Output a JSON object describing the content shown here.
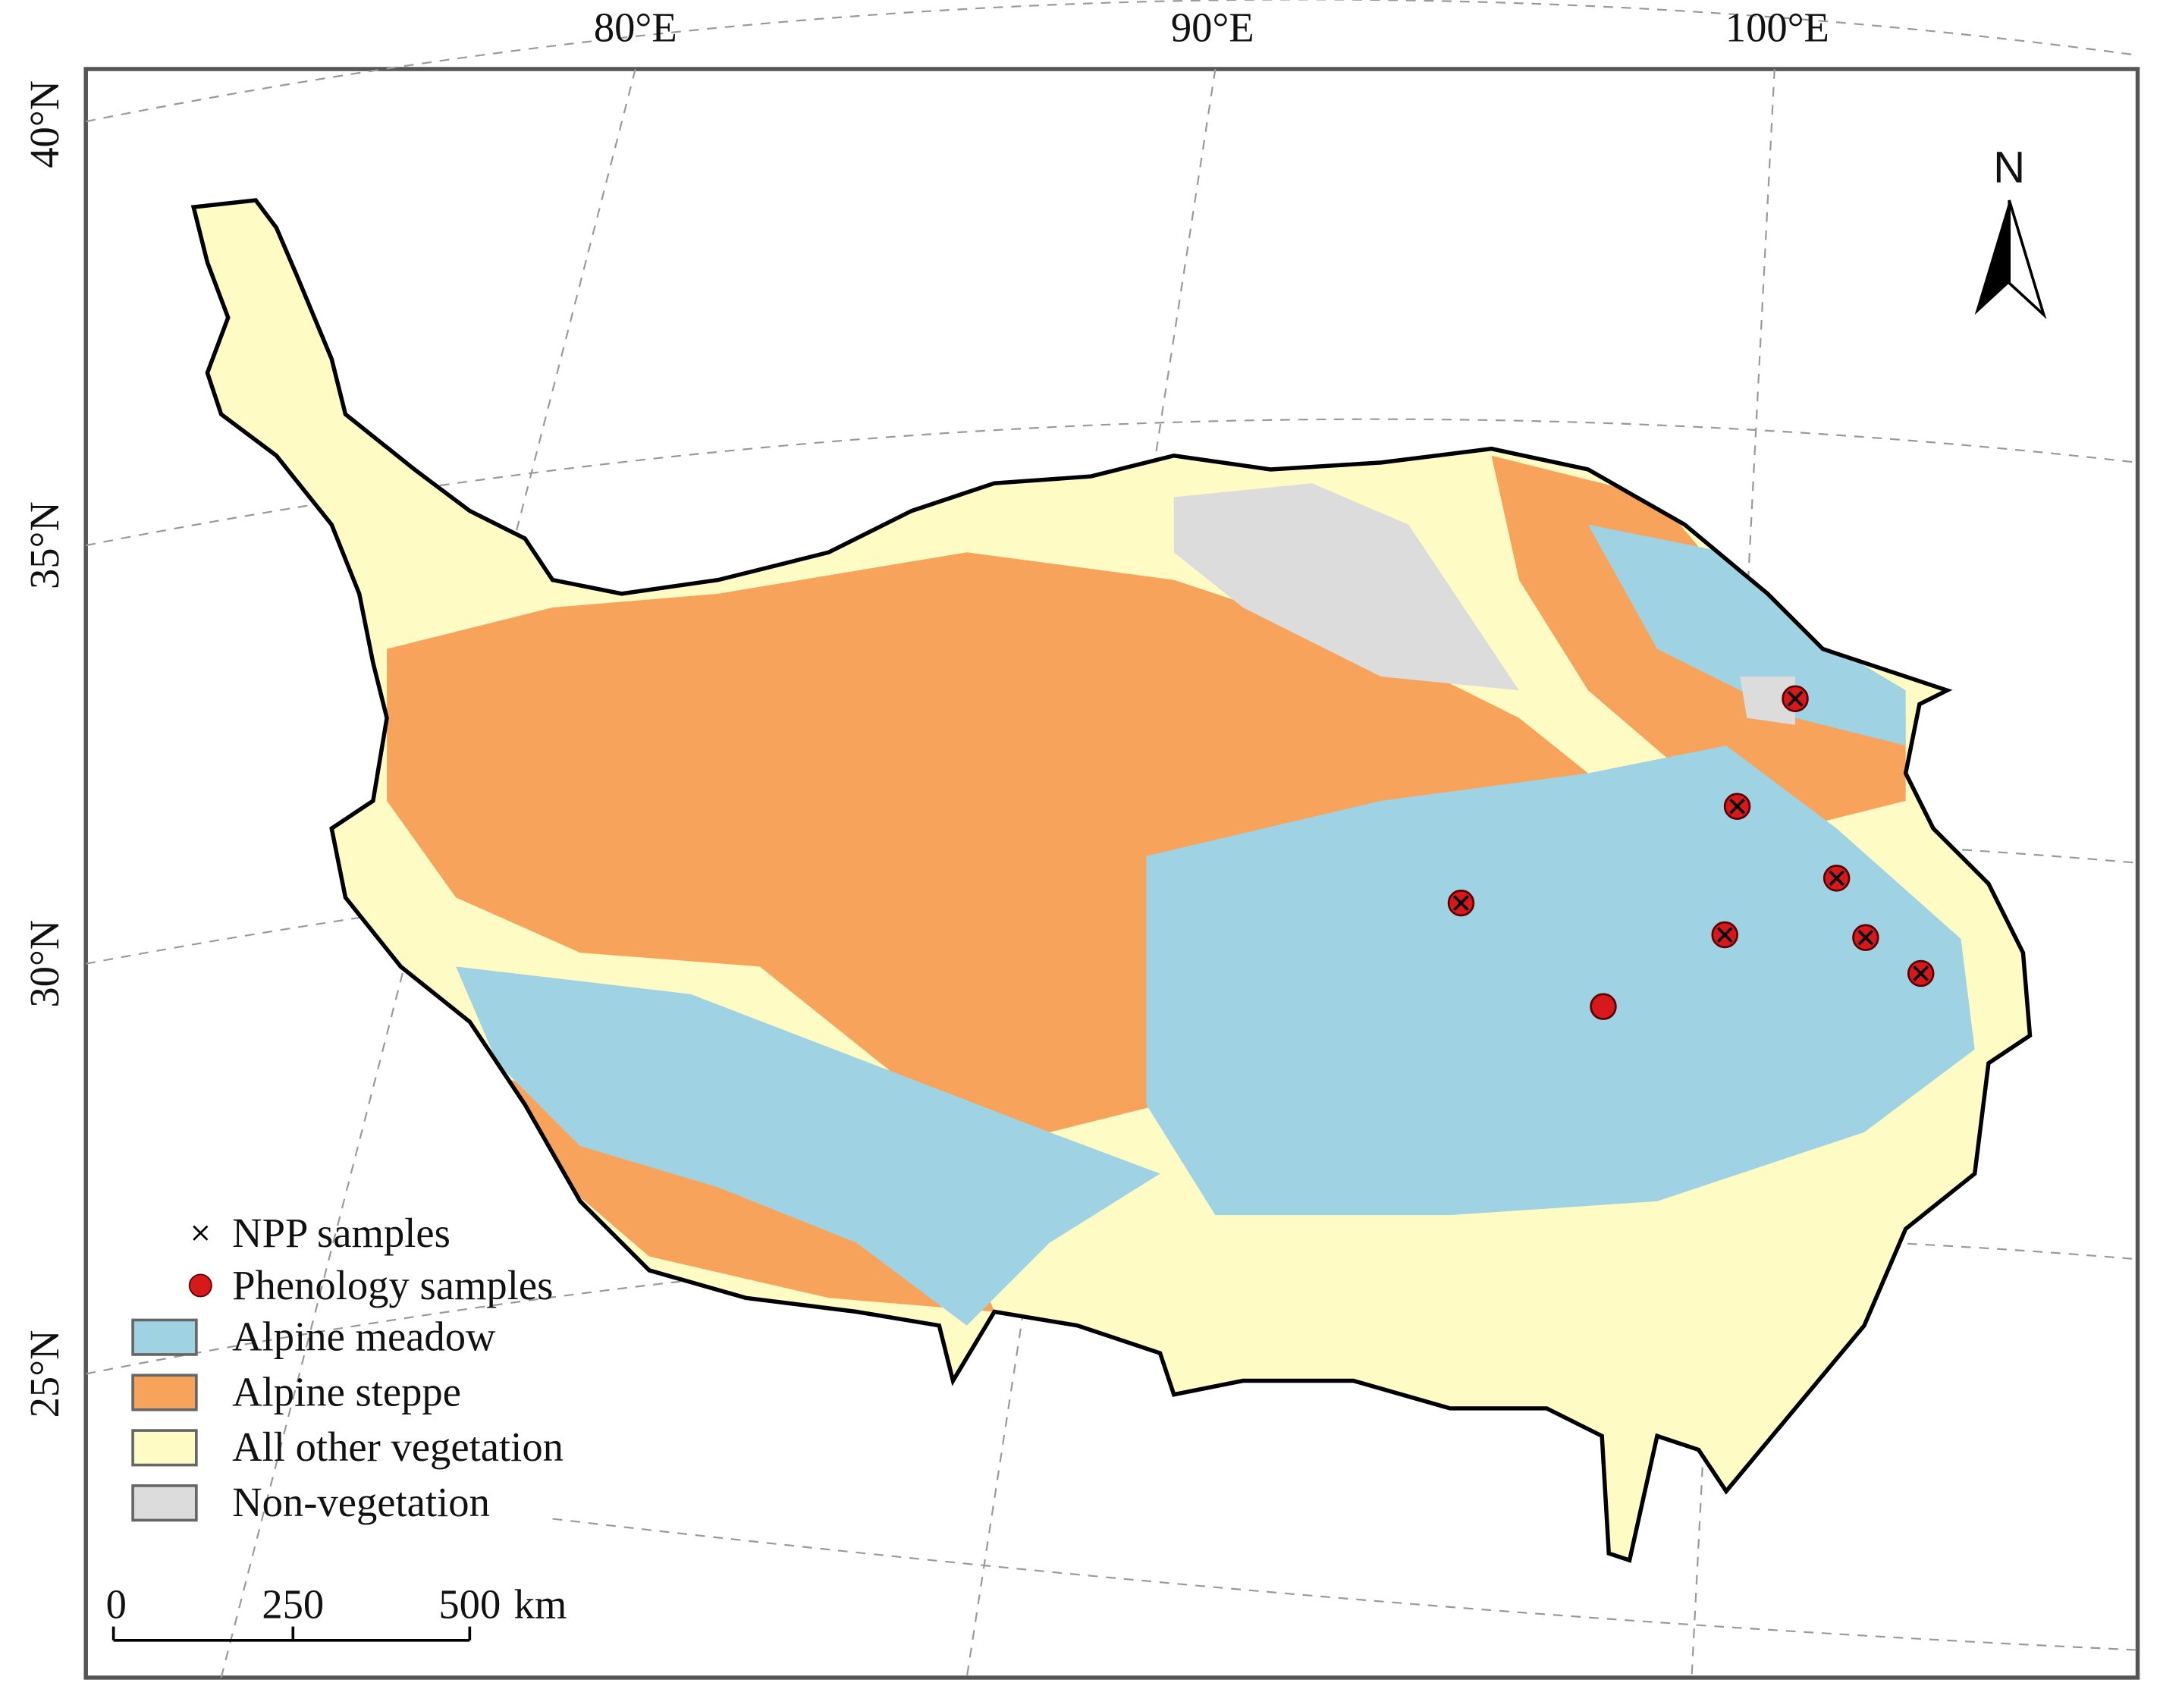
{
  "map": {
    "longitude_labels": [
      "80°E",
      "90°E",
      "100°E"
    ],
    "latitude_labels": [
      "40°N",
      "35°N",
      "30°N",
      "25°N"
    ],
    "north_arrow": "N",
    "legend": [
      "NPP samples",
      "Phenology samples",
      "Alpine meadow",
      "Alpine steppe",
      "All other vegetation",
      "Non-vegetation"
    ],
    "scale_bar": {
      "labels": [
        "0",
        "250",
        "500"
      ],
      "unit": "km"
    }
  }
}
